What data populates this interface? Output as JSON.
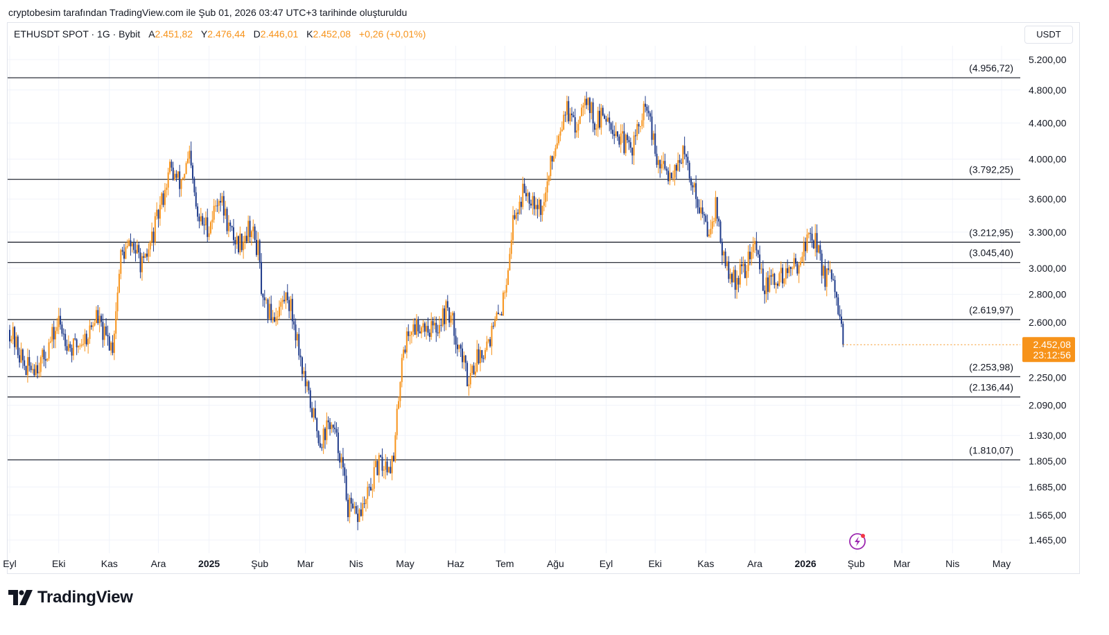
{
  "header": {
    "credit": "cryptobesim tarafından TradingView.com ile Şub 01, 2026 03:47 UTC+3 tarihinde oluşturuldu",
    "symbol": "ETHUSDT SPOT · 1G · Bybit",
    "open_label": "A",
    "open": "2.451,82",
    "high_label": "Y",
    "high": "2.476,44",
    "low_label": "D",
    "low": "2.446,01",
    "close_label": "K",
    "close": "2.452,08",
    "change": "+0,26 (+0,01%)"
  },
  "currency_button": "USDT",
  "branding": {
    "logo_text": "TradingView"
  },
  "colors": {
    "up": "#f7931a",
    "down": "#1e3a8a",
    "level": "#131722",
    "price_tag": "#f7931a",
    "grid": "#f0f3fa"
  },
  "chart_data": {
    "type": "candlestick",
    "title": "ETHUSDT SPOT · 1G · Bybit",
    "y_scale": "log",
    "ylim": [
      1380,
      5450
    ],
    "y_ticks": [
      "5.200,00",
      "4.800,00",
      "4.400,00",
      "4.000,00",
      "3.600,00",
      "3.300,00",
      "3.000,00",
      "2.800,00",
      "2.600,00",
      "2.250,00",
      "2.090,00",
      "1.930,00",
      "1.805,00",
      "1.685,00",
      "1.565,00",
      "1.465,00"
    ],
    "y_tick_values": [
      5200,
      4800,
      4400,
      4000,
      3600,
      3300,
      3000,
      2800,
      2600,
      2250,
      2090,
      1930,
      1805,
      1685,
      1565,
      1465
    ],
    "x_ticks": [
      {
        "label": "Eyl",
        "day": 0,
        "bold": false
      },
      {
        "label": "Eki",
        "day": 30,
        "bold": false
      },
      {
        "label": "Kas",
        "day": 61,
        "bold": false
      },
      {
        "label": "Ara",
        "day": 91,
        "bold": false
      },
      {
        "label": "2025",
        "day": 122,
        "bold": true
      },
      {
        "label": "Şub",
        "day": 153,
        "bold": false
      },
      {
        "label": "Mar",
        "day": 181,
        "bold": false
      },
      {
        "label": "Nis",
        "day": 212,
        "bold": false
      },
      {
        "label": "May",
        "day": 242,
        "bold": false
      },
      {
        "label": "Haz",
        "day": 273,
        "bold": false
      },
      {
        "label": "Tem",
        "day": 303,
        "bold": false
      },
      {
        "label": "Ağu",
        "day": 334,
        "bold": false
      },
      {
        "label": "Eyl",
        "day": 365,
        "bold": false
      },
      {
        "label": "Eki",
        "day": 395,
        "bold": false
      },
      {
        "label": "Kas",
        "day": 426,
        "bold": false
      },
      {
        "label": "Ara",
        "day": 456,
        "bold": false
      },
      {
        "label": "2026",
        "day": 487,
        "bold": true
      },
      {
        "label": "Şub",
        "day": 518,
        "bold": false
      },
      {
        "label": "Mar",
        "day": 546,
        "bold": false
      },
      {
        "label": "Nis",
        "day": 577,
        "bold": false
      },
      {
        "label": "May",
        "day": 607,
        "bold": false
      }
    ],
    "levels": [
      {
        "value": 4956.72,
        "label": "(4.956,72)"
      },
      {
        "value": 3792.25,
        "label": "(3.792,25)"
      },
      {
        "value": 3212.95,
        "label": "(3.212,95)"
      },
      {
        "value": 3045.4,
        "label": "(3.045,40)"
      },
      {
        "value": 2619.97,
        "label": "(2.619,97)"
      },
      {
        "value": 2253.98,
        "label": "(2.253,98)"
      },
      {
        "value": 2136.44,
        "label": "(2.136,44)"
      },
      {
        "value": 1810.07,
        "label": "(1.810,07)"
      }
    ],
    "last_price": {
      "value": 2452.08,
      "label": "2.452,08",
      "countdown": "23:12:56"
    },
    "price_path": [
      {
        "day": 0,
        "price": 2550
      },
      {
        "day": 10,
        "price": 2300
      },
      {
        "day": 20,
        "price": 2350
      },
      {
        "day": 30,
        "price": 2600
      },
      {
        "day": 38,
        "price": 2420
      },
      {
        "day": 48,
        "price": 2520
      },
      {
        "day": 53,
        "price": 2650
      },
      {
        "day": 58,
        "price": 2500
      },
      {
        "day": 63,
        "price": 2450
      },
      {
        "day": 68,
        "price": 3100
      },
      {
        "day": 75,
        "price": 3200
      },
      {
        "day": 82,
        "price": 3000
      },
      {
        "day": 90,
        "price": 3400
      },
      {
        "day": 98,
        "price": 3900
      },
      {
        "day": 104,
        "price": 3750
      },
      {
        "day": 110,
        "price": 4000
      },
      {
        "day": 115,
        "price": 3400
      },
      {
        "day": 122,
        "price": 3350
      },
      {
        "day": 128,
        "price": 3650
      },
      {
        "day": 135,
        "price": 3300
      },
      {
        "day": 140,
        "price": 3200
      },
      {
        "day": 147,
        "price": 3350
      },
      {
        "day": 152,
        "price": 3150
      },
      {
        "day": 155,
        "price": 2700
      },
      {
        "day": 162,
        "price": 2650
      },
      {
        "day": 170,
        "price": 2800
      },
      {
        "day": 175,
        "price": 2550
      },
      {
        "day": 181,
        "price": 2200
      },
      {
        "day": 190,
        "price": 1900
      },
      {
        "day": 196,
        "price": 2000
      },
      {
        "day": 202,
        "price": 1850
      },
      {
        "day": 207,
        "price": 1600
      },
      {
        "day": 212,
        "price": 1550
      },
      {
        "day": 218,
        "price": 1620
      },
      {
        "day": 225,
        "price": 1780
      },
      {
        "day": 235,
        "price": 1800
      },
      {
        "day": 240,
        "price": 2400
      },
      {
        "day": 245,
        "price": 2550
      },
      {
        "day": 252,
        "price": 2600
      },
      {
        "day": 260,
        "price": 2550
      },
      {
        "day": 268,
        "price": 2700
      },
      {
        "day": 275,
        "price": 2450
      },
      {
        "day": 280,
        "price": 2250
      },
      {
        "day": 288,
        "price": 2400
      },
      {
        "day": 296,
        "price": 2550
      },
      {
        "day": 302,
        "price": 2750
      },
      {
        "day": 308,
        "price": 3400
      },
      {
        "day": 315,
        "price": 3700
      },
      {
        "day": 322,
        "price": 3600
      },
      {
        "day": 326,
        "price": 3500
      },
      {
        "day": 333,
        "price": 4100
      },
      {
        "day": 340,
        "price": 4600
      },
      {
        "day": 346,
        "price": 4300
      },
      {
        "day": 352,
        "price": 4800
      },
      {
        "day": 358,
        "price": 4400
      },
      {
        "day": 366,
        "price": 4500
      },
      {
        "day": 374,
        "price": 4200
      },
      {
        "day": 380,
        "price": 4100
      },
      {
        "day": 390,
        "price": 4600
      },
      {
        "day": 396,
        "price": 3950
      },
      {
        "day": 404,
        "price": 3850
      },
      {
        "day": 412,
        "price": 4050
      },
      {
        "day": 420,
        "price": 3650
      },
      {
        "day": 427,
        "price": 3300
      },
      {
        "day": 432,
        "price": 3550
      },
      {
        "day": 437,
        "price": 3050
      },
      {
        "day": 443,
        "price": 2900
      },
      {
        "day": 450,
        "price": 3000
      },
      {
        "day": 456,
        "price": 3200
      },
      {
        "day": 462,
        "price": 2850
      },
      {
        "day": 468,
        "price": 2900
      },
      {
        "day": 474,
        "price": 2950
      },
      {
        "day": 480,
        "price": 3000
      },
      {
        "day": 486,
        "price": 3150
      },
      {
        "day": 490,
        "price": 3300
      },
      {
        "day": 494,
        "price": 3200
      },
      {
        "day": 498,
        "price": 2950
      },
      {
        "day": 503,
        "price": 2900
      },
      {
        "day": 507,
        "price": 2700
      },
      {
        "day": 510,
        "price": 2452
      }
    ]
  }
}
